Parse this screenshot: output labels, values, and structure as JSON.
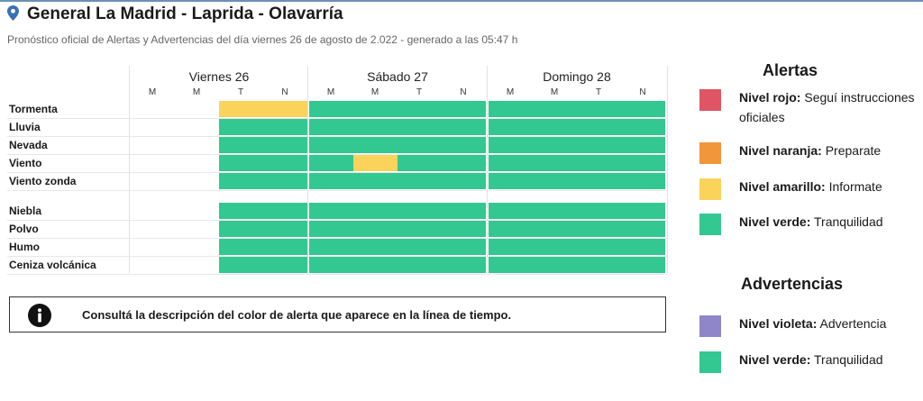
{
  "header": {
    "title": "General La Madrid - Laprida - Olavarría",
    "subtitle": "Pronóstico oficial de Alertas y Advertencias del día viernes 26 de agosto de 2.022 - generado a las 05:47 h",
    "icon": "location-pin-icon",
    "accent_color": "#3b6fb6"
  },
  "timeline": {
    "days": [
      {
        "label": "Viernes 26",
        "periods": [
          "M",
          "M",
          "T",
          "N"
        ]
      },
      {
        "label": "Sábado 27",
        "periods": [
          "M",
          "M",
          "T",
          "N"
        ]
      },
      {
        "label": "Domingo 28",
        "periods": [
          "M",
          "M",
          "T",
          "N"
        ]
      }
    ],
    "groups": [
      {
        "rows": [
          {
            "label": "Tormenta",
            "levels": [
              null,
              null,
              "amarillo",
              "amarillo",
              "verde",
              "verde",
              "verde",
              "verde",
              "verde",
              "verde",
              "verde",
              "verde"
            ]
          },
          {
            "label": "Lluvia",
            "levels": [
              null,
              null,
              "verde",
              "verde",
              "verde",
              "verde",
              "verde",
              "verde",
              "verde",
              "verde",
              "verde",
              "verde"
            ]
          },
          {
            "label": "Nevada",
            "levels": [
              null,
              null,
              "verde",
              "verde",
              "verde",
              "verde",
              "verde",
              "verde",
              "verde",
              "verde",
              "verde",
              "verde"
            ]
          },
          {
            "label": "Viento",
            "levels": [
              null,
              null,
              "verde",
              "verde",
              "verde",
              "amarillo",
              "verde",
              "verde",
              "verde",
              "verde",
              "verde",
              "verde"
            ]
          },
          {
            "label": "Viento zonda",
            "levels": [
              null,
              null,
              "verde",
              "verde",
              "verde",
              "verde",
              "verde",
              "verde",
              "verde",
              "verde",
              "verde",
              "verde"
            ]
          }
        ]
      },
      {
        "rows": [
          {
            "label": "Niebla",
            "levels": [
              null,
              null,
              "verde",
              "verde",
              "verde",
              "verde",
              "verde",
              "verde",
              "verde",
              "verde",
              "verde",
              "verde"
            ]
          },
          {
            "label": "Polvo",
            "levels": [
              null,
              null,
              "verde",
              "verde",
              "verde",
              "verde",
              "verde",
              "verde",
              "verde",
              "verde",
              "verde",
              "verde"
            ]
          },
          {
            "label": "Humo",
            "levels": [
              null,
              null,
              "verde",
              "verde",
              "verde",
              "verde",
              "verde",
              "verde",
              "verde",
              "verde",
              "verde",
              "verde"
            ]
          },
          {
            "label": "Ceniza volcánica",
            "levels": [
              null,
              null,
              "verde",
              "verde",
              "verde",
              "verde",
              "verde",
              "verde",
              "verde",
              "verde",
              "verde",
              "verde"
            ]
          }
        ]
      }
    ]
  },
  "info_box": {
    "icon": "info-icon",
    "text": "Consultá la descripción del color de alerta que aparece en la línea de tiempo."
  },
  "legend": {
    "alertas": {
      "title": "Alertas",
      "items": [
        {
          "level": "rojo",
          "name": "Nivel rojo:",
          "desc": "Seguí instrucciones oficiales",
          "color": "#e05565"
        },
        {
          "level": "naranja",
          "name": "Nivel naranja:",
          "desc": "Preparate",
          "color": "#f2963b"
        },
        {
          "level": "amarillo",
          "name": "Nivel amarillo:",
          "desc": "Informate",
          "color": "#fad35a"
        },
        {
          "level": "verde",
          "name": "Nivel verde:",
          "desc": "Tranquilidad",
          "color": "#33c791"
        }
      ]
    },
    "advertencias": {
      "title": "Advertencias",
      "items": [
        {
          "level": "violeta",
          "name": "Nivel violeta:",
          "desc": "Advertencia",
          "color": "#8f86c8"
        },
        {
          "level": "verde",
          "name": "Nivel verde:",
          "desc": "Tranquilidad",
          "color": "#33c791"
        }
      ]
    }
  }
}
